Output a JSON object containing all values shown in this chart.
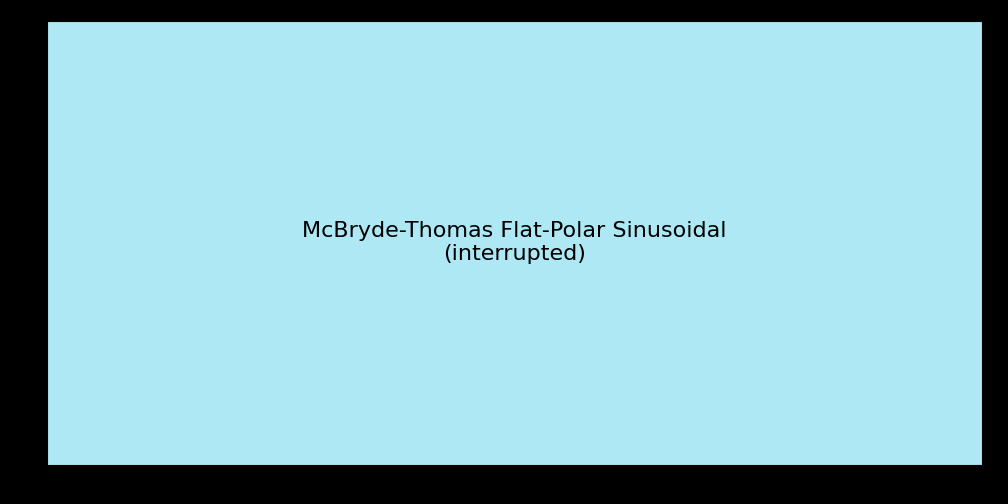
{
  "projection": "McBryde-Thomas Flat-Polar Sinusoidal (interrupted)",
  "background_color": "#000000",
  "ocean_color": "#ADE8F4",
  "land_colors": [
    "#E07B7B",
    "#2A9D8F",
    "#8DB87A",
    "#F4D58D",
    "#E8A87C",
    "#5BA4A4",
    "#E76F51",
    "#70B87E",
    "#D4A96A",
    "#B5D99C",
    "#F2CC8F"
  ],
  "border_color": "#ffffff",
  "border_linewidth": 0.3,
  "figsize": [
    10.08,
    5.04
  ],
  "dpi": 100
}
